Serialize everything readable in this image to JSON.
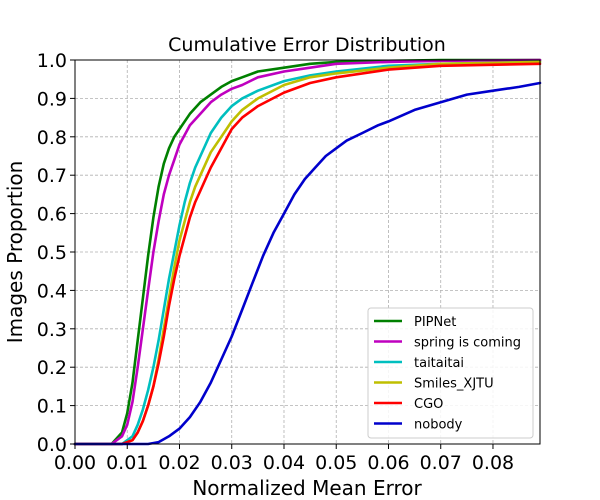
{
  "chart_data": {
    "type": "line",
    "title": "Cumulative Error Distribution",
    "xlabel": "Normalized Mean Error",
    "ylabel": "Images Proportion",
    "xlim": [
      0.0,
      0.089
    ],
    "ylim": [
      0.0,
      1.0
    ],
    "xticks": [
      "0.00",
      "0.01",
      "0.02",
      "0.03",
      "0.04",
      "0.05",
      "0.06",
      "0.07",
      "0.08"
    ],
    "yticks": [
      "0.0",
      "0.1",
      "0.2",
      "0.3",
      "0.4",
      "0.5",
      "0.6",
      "0.7",
      "0.8",
      "0.9",
      "1.0"
    ],
    "grid": true,
    "legend_position": "lower-right",
    "series": [
      {
        "name": "PIPNet",
        "color": "#008000",
        "x": [
          0,
          0.007,
          0.009,
          0.01,
          0.011,
          0.012,
          0.013,
          0.014,
          0.015,
          0.016,
          0.017,
          0.018,
          0.019,
          0.02,
          0.022,
          0.024,
          0.026,
          0.028,
          0.03,
          0.032,
          0.035,
          0.04,
          0.045,
          0.05,
          0.06,
          0.07,
          0.089
        ],
        "y": [
          0,
          0.0,
          0.03,
          0.08,
          0.16,
          0.27,
          0.38,
          0.49,
          0.59,
          0.67,
          0.73,
          0.77,
          0.8,
          0.82,
          0.86,
          0.89,
          0.91,
          0.93,
          0.945,
          0.955,
          0.97,
          0.98,
          0.99,
          0.995,
          0.998,
          1.0,
          1.0
        ]
      },
      {
        "name": "spring is coming",
        "color": "#bf00bf",
        "x": [
          0,
          0.007,
          0.009,
          0.01,
          0.011,
          0.012,
          0.013,
          0.014,
          0.015,
          0.016,
          0.017,
          0.018,
          0.019,
          0.02,
          0.022,
          0.024,
          0.026,
          0.028,
          0.03,
          0.032,
          0.035,
          0.04,
          0.045,
          0.05,
          0.06,
          0.07,
          0.089
        ],
        "y": [
          0,
          0.0,
          0.02,
          0.05,
          0.11,
          0.2,
          0.3,
          0.4,
          0.5,
          0.58,
          0.65,
          0.7,
          0.74,
          0.78,
          0.83,
          0.86,
          0.89,
          0.91,
          0.925,
          0.935,
          0.955,
          0.97,
          0.98,
          0.99,
          0.995,
          0.998,
          1.0
        ]
      },
      {
        "name": "taitaitai",
        "color": "#00bfbf",
        "x": [
          0,
          0.009,
          0.011,
          0.012,
          0.013,
          0.014,
          0.015,
          0.016,
          0.017,
          0.018,
          0.019,
          0.02,
          0.021,
          0.022,
          0.023,
          0.024,
          0.025,
          0.026,
          0.028,
          0.03,
          0.032,
          0.035,
          0.04,
          0.045,
          0.05,
          0.06,
          0.07,
          0.089
        ],
        "y": [
          0,
          0.0,
          0.02,
          0.05,
          0.09,
          0.14,
          0.2,
          0.27,
          0.35,
          0.43,
          0.5,
          0.57,
          0.63,
          0.68,
          0.72,
          0.75,
          0.78,
          0.81,
          0.85,
          0.88,
          0.9,
          0.92,
          0.945,
          0.96,
          0.97,
          0.985,
          0.99,
          0.995
        ]
      },
      {
        "name": "Smiles_XJTU",
        "color": "#bfbf00",
        "x": [
          0,
          0.009,
          0.011,
          0.012,
          0.013,
          0.014,
          0.015,
          0.016,
          0.017,
          0.018,
          0.019,
          0.02,
          0.021,
          0.022,
          0.023,
          0.024,
          0.025,
          0.026,
          0.028,
          0.03,
          0.032,
          0.035,
          0.04,
          0.045,
          0.05,
          0.06,
          0.07,
          0.089
        ],
        "y": [
          0,
          0.0,
          0.01,
          0.03,
          0.06,
          0.1,
          0.15,
          0.22,
          0.3,
          0.38,
          0.46,
          0.53,
          0.58,
          0.63,
          0.67,
          0.7,
          0.73,
          0.76,
          0.8,
          0.84,
          0.87,
          0.9,
          0.935,
          0.955,
          0.965,
          0.98,
          0.99,
          0.995
        ]
      },
      {
        "name": "CGO",
        "color": "#ff0000",
        "x": [
          0,
          0.009,
          0.011,
          0.012,
          0.013,
          0.014,
          0.015,
          0.016,
          0.017,
          0.018,
          0.019,
          0.02,
          0.021,
          0.022,
          0.023,
          0.024,
          0.025,
          0.026,
          0.028,
          0.03,
          0.032,
          0.035,
          0.04,
          0.045,
          0.05,
          0.06,
          0.07,
          0.089
        ],
        "y": [
          0,
          0.0,
          0.01,
          0.03,
          0.06,
          0.1,
          0.15,
          0.21,
          0.28,
          0.36,
          0.43,
          0.49,
          0.54,
          0.59,
          0.63,
          0.66,
          0.69,
          0.72,
          0.77,
          0.82,
          0.85,
          0.88,
          0.915,
          0.94,
          0.955,
          0.975,
          0.985,
          0.99
        ]
      },
      {
        "name": "nobody",
        "color": "#0000cc",
        "x": [
          0,
          0.01,
          0.014,
          0.016,
          0.018,
          0.02,
          0.022,
          0.024,
          0.026,
          0.028,
          0.03,
          0.032,
          0.034,
          0.036,
          0.038,
          0.04,
          0.042,
          0.044,
          0.046,
          0.048,
          0.05,
          0.052,
          0.055,
          0.058,
          0.06,
          0.065,
          0.07,
          0.075,
          0.08,
          0.085,
          0.089
        ],
        "y": [
          0,
          0.0,
          0.0,
          0.005,
          0.02,
          0.04,
          0.07,
          0.11,
          0.16,
          0.22,
          0.28,
          0.35,
          0.42,
          0.49,
          0.55,
          0.6,
          0.65,
          0.69,
          0.72,
          0.75,
          0.77,
          0.79,
          0.81,
          0.83,
          0.84,
          0.87,
          0.89,
          0.91,
          0.92,
          0.93,
          0.94
        ]
      }
    ]
  }
}
